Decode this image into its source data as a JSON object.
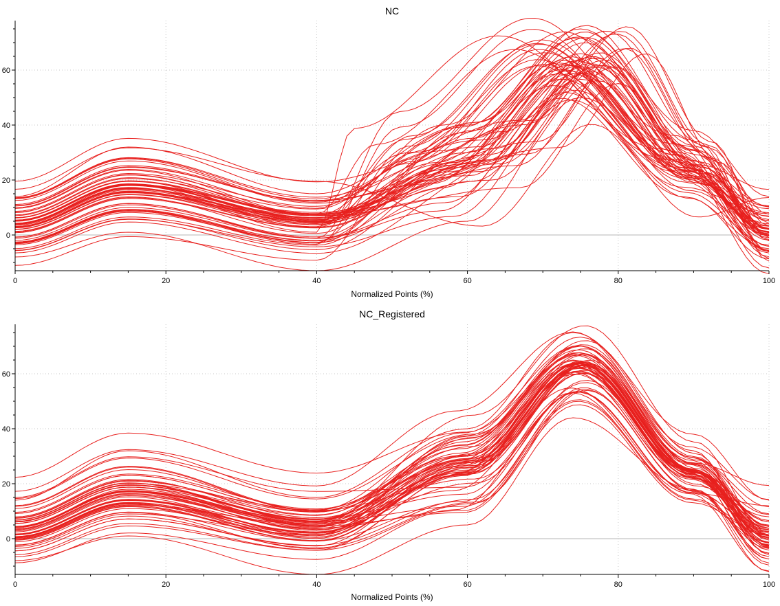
{
  "chart_data": [
    {
      "type": "line",
      "title": "NC",
      "xlabel": "Normalized Points (%)",
      "ylabel": "",
      "xlim": [
        0,
        100
      ],
      "ylim": [
        -13,
        78
      ],
      "x_ticks": [
        0,
        20,
        40,
        60,
        80,
        100
      ],
      "y_ticks": [
        0,
        20,
        40,
        60
      ],
      "grid": true,
      "line_color": "#e8201e",
      "curve_count": 60,
      "representative_series": [
        {
          "x": [
            0,
            15,
            40,
            60,
            75,
            90,
            100
          ],
          "y": [
            4,
            18,
            6,
            30,
            66,
            27,
            2
          ]
        },
        {
          "x": [
            0,
            15,
            40,
            60,
            75,
            90,
            100
          ],
          "y": [
            -8,
            1,
            -13,
            5,
            50,
            20,
            -12
          ]
        },
        {
          "x": [
            0,
            15,
            40,
            60,
            75,
            90,
            100
          ],
          "y": [
            14,
            32,
            15,
            40,
            75,
            38,
            14
          ]
        }
      ]
    },
    {
      "type": "line",
      "title": "NC_Registered",
      "xlabel": "Normalized Points (%)",
      "ylabel": "",
      "xlim": [
        0,
        100
      ],
      "ylim": [
        -13,
        78
      ],
      "x_ticks": [
        0,
        20,
        40,
        60,
        80,
        100
      ],
      "y_ticks": [
        0,
        20,
        40,
        60
      ],
      "grid": true,
      "line_color": "#e8201e",
      "curve_count": 60,
      "representative_series": [
        {
          "x": [
            0,
            15,
            40,
            60,
            74,
            90,
            100
          ],
          "y": [
            4,
            18,
            6,
            30,
            65,
            25,
            2
          ]
        },
        {
          "x": [
            0,
            15,
            40,
            60,
            74,
            90,
            100
          ],
          "y": [
            -8,
            1,
            -13,
            5,
            44,
            18,
            -12
          ]
        },
        {
          "x": [
            0,
            15,
            40,
            60,
            74,
            90,
            100
          ],
          "y": [
            14,
            32,
            15,
            40,
            75,
            38,
            14
          ]
        }
      ]
    }
  ]
}
